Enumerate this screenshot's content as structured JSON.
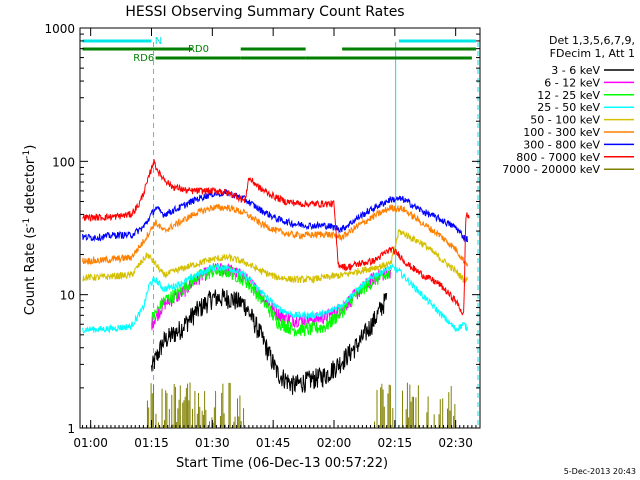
{
  "chart_data": {
    "type": "line",
    "title": "HESSI Observing Summary Count Rates",
    "xlabel": "Start Time (06-Dec-13 00:57:22)",
    "ylabel_main": "Count Rate (s",
    "ylabel_sup1": "-1",
    "ylabel_mid": " detector",
    "ylabel_sup2": "-1",
    "ylabel_end": ")",
    "y_scale": "log",
    "ylim": [
      1,
      1000
    ],
    "xlim_minutes": [
      57.37,
      156
    ],
    "x_ticks": [
      {
        "minute": 60,
        "label": "01:00"
      },
      {
        "minute": 75,
        "label": "01:15"
      },
      {
        "minute": 90,
        "label": "01:30"
      },
      {
        "minute": 105,
        "label": "01:45"
      },
      {
        "minute": 120,
        "label": "02:00"
      },
      {
        "minute": 135,
        "label": "02:15"
      },
      {
        "minute": 150,
        "label": "02:30"
      }
    ],
    "y_ticks": [
      {
        "value": 1,
        "label": "1"
      },
      {
        "value": 10,
        "label": "10"
      },
      {
        "value": 100,
        "label": "100"
      },
      {
        "value": 1000,
        "label": "1000"
      }
    ],
    "legend_header": [
      "Det 1,3,5,6,7,9,",
      "FDecim 1, Att 1"
    ],
    "legend_placement": "right",
    "timestamp": "5-Dec-2013 20:43",
    "flag_labels": {
      "n": "N",
      "rd0": "RD0",
      "rd6": "RD6"
    },
    "flag_color_n": "#00e5e5",
    "flag_color_rd": "#007f00",
    "flag_bars_minutes": {
      "n": [
        [
          58,
          75
        ],
        [
          136,
          155
        ]
      ],
      "rd0": [
        [
          58,
          85
        ],
        [
          97,
          113
        ],
        [
          122,
          155
        ]
      ],
      "rd6": [
        [
          76,
          97
        ],
        [
          97,
          113
        ],
        [
          113,
          154
        ]
      ]
    },
    "saa_lines_minutes": [
      75.5,
      135.2,
      155.5
    ],
    "saa_color": "#00e5e5",
    "series": [
      {
        "name": "3 - 6 keV",
        "color": "#000000",
        "x": [
          75,
          78,
          82,
          86,
          90,
          94,
          98,
          102,
          106,
          110,
          114,
          118,
          122,
          126,
          130,
          133
        ],
        "y": [
          2.8,
          4.5,
          5.5,
          7.5,
          9.5,
          9.5,
          8.5,
          5,
          2.6,
          2.1,
          2.3,
          2.5,
          3.2,
          4.3,
          6.5,
          9.5
        ]
      },
      {
        "name": "6 - 12 keV",
        "color": "#ff00ff",
        "x": [
          75,
          78,
          82,
          86,
          90,
          94,
          98,
          102,
          106,
          110,
          114,
          118,
          122,
          126,
          130,
          134
        ],
        "y": [
          6,
          8.5,
          10,
          13,
          15.5,
          15.5,
          13.5,
          10,
          7.2,
          6.5,
          6.5,
          6.8,
          8,
          10.5,
          13.5,
          15
        ]
      },
      {
        "name": "12 - 25 keV",
        "color": "#00ff00",
        "x": [
          75,
          78,
          82,
          86,
          90,
          94,
          98,
          102,
          106,
          110,
          114,
          118,
          122,
          126,
          130,
          134
        ],
        "y": [
          6.5,
          9,
          10.5,
          13.5,
          15,
          15,
          13,
          9.5,
          6.3,
          5.5,
          5.5,
          5.8,
          7.5,
          10.5,
          13,
          14
        ]
      },
      {
        "name": "25 - 50 keV",
        "color": "#00ffff",
        "x": [
          58,
          62,
          66,
          70,
          73,
          74.5,
          76,
          78,
          82,
          86,
          90,
          94,
          98,
          102,
          106,
          110,
          114,
          118,
          122,
          126,
          130,
          134,
          136,
          150,
          152,
          153
        ],
        "y": [
          5.5,
          5.5,
          5.6,
          5.8,
          8,
          12,
          13,
          11,
          12,
          14,
          16,
          16,
          14,
          10.5,
          8,
          7,
          7,
          7.2,
          8.5,
          11,
          14,
          16,
          15,
          5.5,
          6,
          5.5
        ]
      },
      {
        "name": "50 - 100 keV",
        "color": "#d4c000",
        "x": [
          58,
          62,
          66,
          70,
          74,
          76,
          78,
          82,
          86,
          90,
          94,
          98,
          102,
          106,
          110,
          114,
          118,
          122,
          126,
          130,
          134,
          136,
          142,
          146,
          150,
          152,
          153
        ],
        "y": [
          13.5,
          13.5,
          13.8,
          14,
          20,
          17,
          14,
          15.5,
          17,
          18.5,
          19,
          17.5,
          15,
          13.5,
          13,
          13,
          13.5,
          14,
          15,
          16,
          17,
          30,
          24,
          19,
          15,
          13,
          13
        ]
      },
      {
        "name": "100 - 300 keV",
        "color": "#ff8000",
        "x": [
          58,
          62,
          66,
          70,
          73,
          76,
          78,
          82,
          86,
          90,
          94,
          98,
          102,
          106,
          110,
          114,
          118,
          122,
          126,
          130,
          134,
          137,
          142,
          146,
          150,
          152,
          153
        ],
        "y": [
          18,
          18,
          18.5,
          19,
          25,
          35,
          30,
          35,
          41,
          45,
          45,
          41,
          34,
          30,
          28,
          28,
          28.5,
          27,
          33,
          39,
          45,
          44,
          34,
          28,
          22,
          18,
          17
        ]
      },
      {
        "name": "300 - 800 keV",
        "color": "#0000ff",
        "x": [
          58,
          62,
          66,
          70,
          73,
          76,
          78,
          82,
          86,
          90,
          94,
          98,
          102,
          106,
          110,
          114,
          118,
          122,
          126,
          130,
          134,
          137,
          142,
          146,
          150,
          152,
          153
        ],
        "y": [
          27,
          27,
          28,
          28,
          32,
          45,
          40,
          45,
          52,
          57,
          58,
          52,
          43,
          37,
          34,
          33,
          33,
          31,
          38,
          45,
          52,
          52,
          42,
          37,
          32,
          27,
          26
        ]
      },
      {
        "name": "800 - 7000 keV",
        "color": "#ff0000",
        "x": [
          58,
          62,
          66,
          70,
          72,
          74,
          75.5,
          77,
          80,
          84,
          88,
          92,
          96,
          98,
          99,
          102,
          105,
          108,
          112,
          116,
          120,
          121,
          123,
          126,
          130,
          134,
          136,
          138,
          142,
          146,
          150,
          152,
          152.5,
          153.5
        ],
        "y": [
          38,
          38,
          38.5,
          40,
          48,
          70,
          100,
          80,
          65,
          60,
          60,
          60,
          55,
          50,
          75,
          62,
          55,
          50,
          48,
          48,
          48,
          17,
          16,
          17,
          18,
          22,
          20,
          17,
          14,
          12,
          9,
          7,
          40,
          38
        ]
      },
      {
        "name": "7000 - 20000 keV",
        "color": "#808000",
        "x": [],
        "y": []
      }
    ]
  }
}
